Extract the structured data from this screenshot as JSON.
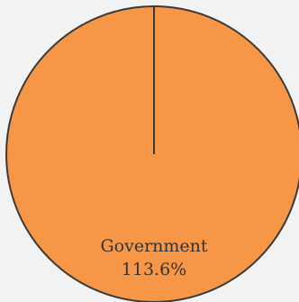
{
  "chart_data": {
    "type": "pie",
    "slices": [
      {
        "category": "Government",
        "value": 113.6,
        "value_label": "113.6%",
        "color": "#f79646"
      }
    ],
    "legend": "none"
  },
  "colors": {
    "background": "#f2f2f2",
    "slice_stroke": "#3a3a3a",
    "label_text": "#333333"
  }
}
